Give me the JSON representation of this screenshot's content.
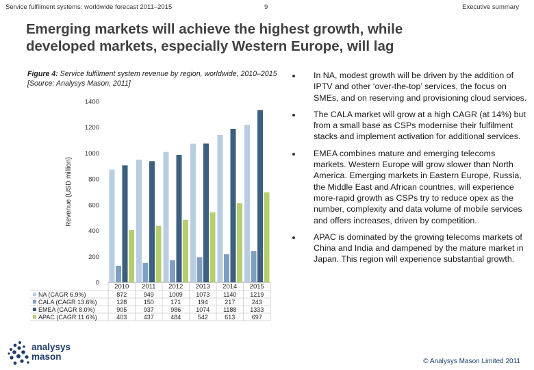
{
  "header": {
    "left": "Service fulfilment systems: worldwide forecast 2011–2015",
    "page": "9",
    "right": "Executive summary"
  },
  "title_line1": "Emerging markets will achieve the highest growth, while",
  "title_line2": "developed markets, especially Western Europe, will lag",
  "caption": {
    "label": "Figure 4:",
    "text": " Service fulfilment system revenue by region, worldwide, 2010–2015 [Source: Analysys Mason, 2011]"
  },
  "chart_data": {
    "type": "bar",
    "categories": [
      "2010",
      "2011",
      "2012",
      "2013",
      "2014",
      "2015"
    ],
    "ylabel": "Revenue (USD million)",
    "ylim": [
      0,
      1400
    ],
    "yticks": [
      "0",
      "200",
      "400",
      "600",
      "800",
      "1000",
      "1200",
      "1400"
    ],
    "series": [
      {
        "name": "NA (CAGR 6.9%)",
        "color": "#b9cde2",
        "values": [
          872,
          949,
          1009,
          1073,
          1140,
          1219
        ]
      },
      {
        "name": "CALA (CAGR 13.6%)",
        "color": "#7e9fc0",
        "values": [
          128,
          150,
          171,
          194,
          217,
          243
        ]
      },
      {
        "name": "EMEA (CAGR 8.0%)",
        "color": "#3d5f80",
        "values": [
          905,
          937,
          986,
          1074,
          1188,
          1333
        ]
      },
      {
        "name": "APAC (CAGR 11.6%)",
        "color": "#b5cf6e",
        "values": [
          403,
          437,
          484,
          542,
          613,
          697
        ]
      }
    ]
  },
  "bullets": [
    "In NA, modest growth will be driven by the addition of IPTV and other ‘over-the-top’ services, the focus on SMEs, and on reserving and provisioning cloud services.",
    "The CALA market will grow at a high CAGR (at 14%) but from a small base as CSPs modernise their fulfilment stacks and implement activation for additional services.",
    "EMEA combines mature and emerging telecoms markets. Western Europe will grow slower than North America. Emerging markets in Eastern Europe, Russia, the Middle East and African countries, will experience more-rapid growth as CSPs try to reduce opex as the number, complexity and data volume of mobile services and offers increases, driven by competition.",
    "APAC is dominated by the growing telecoms markets of China and India and dampened by the mature market in Japan. This region will experience substantial growth."
  ],
  "logo": {
    "line1": "analysys",
    "line2": "mason"
  },
  "copyright": "© Analysys Mason Limited 2011"
}
